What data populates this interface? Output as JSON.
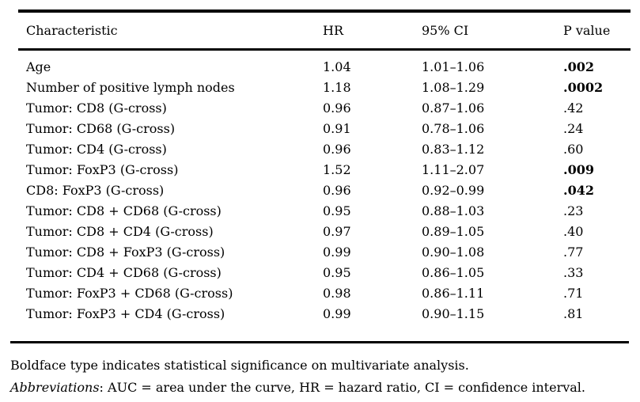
{
  "table": {
    "columns": [
      "Characteristic",
      "HR",
      "95% CI",
      "P value"
    ],
    "rows": [
      {
        "characteristic": "Age",
        "hr": "1.04",
        "ci": "1.01–1.06",
        "p": ".002",
        "significant": true
      },
      {
        "characteristic": "Number of positive lymph nodes",
        "hr": "1.18",
        "ci": "1.08–1.29",
        "p": ".0002",
        "significant": true
      },
      {
        "characteristic": "Tumor: CD8 (G-cross)",
        "hr": "0.96",
        "ci": "0.87–1.06",
        "p": ".42",
        "significant": false
      },
      {
        "characteristic": "Tumor: CD68 (G-cross)",
        "hr": "0.91",
        "ci": "0.78–1.06",
        "p": ".24",
        "significant": false
      },
      {
        "characteristic": "Tumor: CD4 (G-cross)",
        "hr": "0.96",
        "ci": "0.83–1.12",
        "p": ".60",
        "significant": false
      },
      {
        "characteristic": "Tumor: FoxP3 (G-cross)",
        "hr": "1.52",
        "ci": "1.11–2.07",
        "p": ".009",
        "significant": true
      },
      {
        "characteristic": "CD8: FoxP3 (G-cross)",
        "hr": "0.96",
        "ci": "0.92–0.99",
        "p": ".042",
        "significant": true
      },
      {
        "characteristic": "Tumor: CD8 + CD68 (G-cross)",
        "hr": "0.95",
        "ci": "0.88–1.03",
        "p": ".23",
        "significant": false
      },
      {
        "characteristic": "Tumor: CD8 + CD4 (G-cross)",
        "hr": "0.97",
        "ci": "0.89–1.05",
        "p": ".40",
        "significant": false
      },
      {
        "characteristic": "Tumor: CD8 + FoxP3 (G-cross)",
        "hr": "0.99",
        "ci": "0.90–1.08",
        "p": ".77",
        "significant": false
      },
      {
        "characteristic": "Tumor: CD4 + CD68 (G-cross)",
        "hr": "0.95",
        "ci": "0.86–1.05",
        "p": ".33",
        "significant": false
      },
      {
        "characteristic": "Tumor: FoxP3 + CD68 (G-cross)",
        "hr": "0.98",
        "ci": "0.86–1.11",
        "p": ".71",
        "significant": false
      },
      {
        "characteristic": "Tumor: FoxP3 + CD4 (G-cross)",
        "hr": "0.99",
        "ci": "0.90–1.15",
        "p": ".81",
        "significant": false
      }
    ]
  },
  "notes": {
    "significance": "Boldface type indicates statistical significance on multivariate analysis.",
    "abbreviations_label": "Abbreviations",
    "abbreviations_text": ": AUC = area under the curve, HR = hazard ratio, CI = confidence interval."
  },
  "colors": {
    "background": "#ffffff",
    "text": "#000000",
    "rule": "#000000"
  }
}
